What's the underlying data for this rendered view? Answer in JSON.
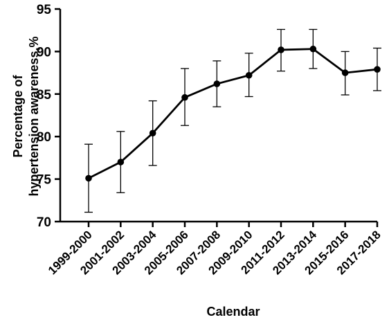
{
  "chart_data": {
    "type": "line",
    "title": "",
    "xlabel": "Calendar",
    "ylabel_lines": [
      "Percentage of",
      "hypertension awareness,%"
    ],
    "ylim": [
      70,
      95
    ],
    "yticks": [
      70,
      75,
      80,
      85,
      90,
      95
    ],
    "grid": false,
    "categories": [
      "1999-2000",
      "2001-2002",
      "2003-2004",
      "2005-2006",
      "2007-2008",
      "2009-2010",
      "2011-2012",
      "2013-2014",
      "2015-2016",
      "2017-2018"
    ],
    "series": [
      {
        "values": [
          75.1,
          77.0,
          80.4,
          84.6,
          86.2,
          87.2,
          90.2,
          90.3,
          87.5,
          87.9
        ],
        "error_low": [
          71.1,
          73.4,
          76.6,
          81.3,
          83.5,
          84.7,
          87.7,
          88.0,
          84.9,
          85.4
        ],
        "error_high": [
          79.1,
          80.6,
          84.2,
          88.0,
          88.9,
          89.8,
          92.6,
          92.6,
          90.0,
          90.4
        ],
        "color": "#000000"
      }
    ]
  }
}
